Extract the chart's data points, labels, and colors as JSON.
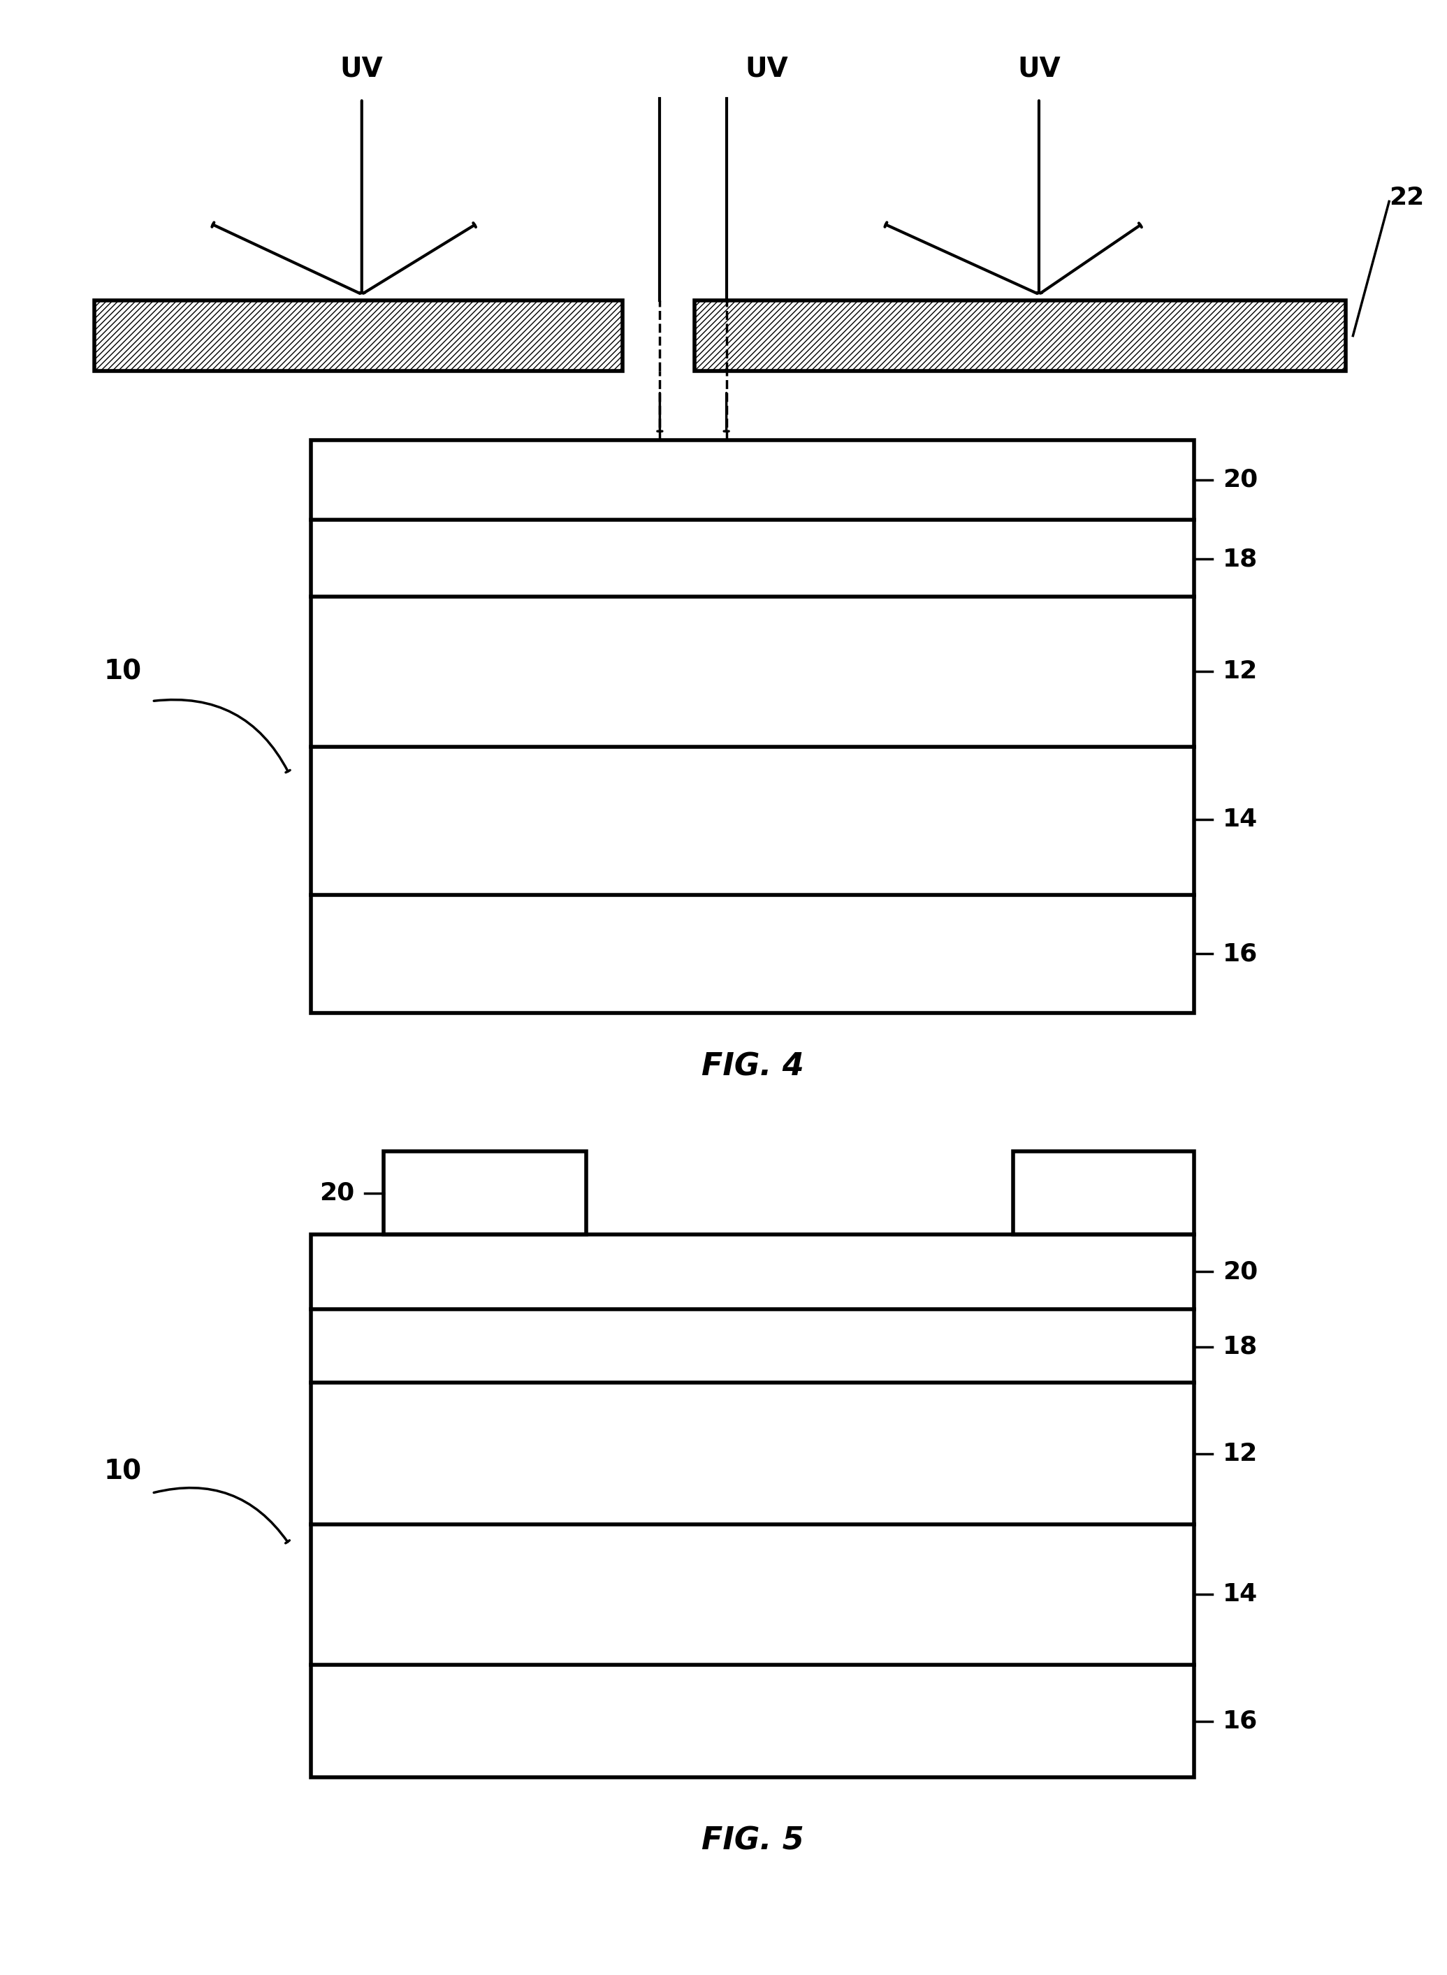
{
  "fig_width": 20.71,
  "fig_height": 28.27,
  "bg_color": "#ffffff",
  "line_color": "#000000",
  "font_size_uv": 28,
  "font_size_label": 28,
  "font_size_fig": 32,
  "font_size_ref": 26,
  "fig4_label": "FIG. 4",
  "fig5_label": "FIG. 5",
  "uv_label": "UV",
  "label_10": "10",
  "label_22": "22",
  "lw_main": 4.0,
  "lw_thin": 2.5,
  "lw_arrow": 3.0
}
